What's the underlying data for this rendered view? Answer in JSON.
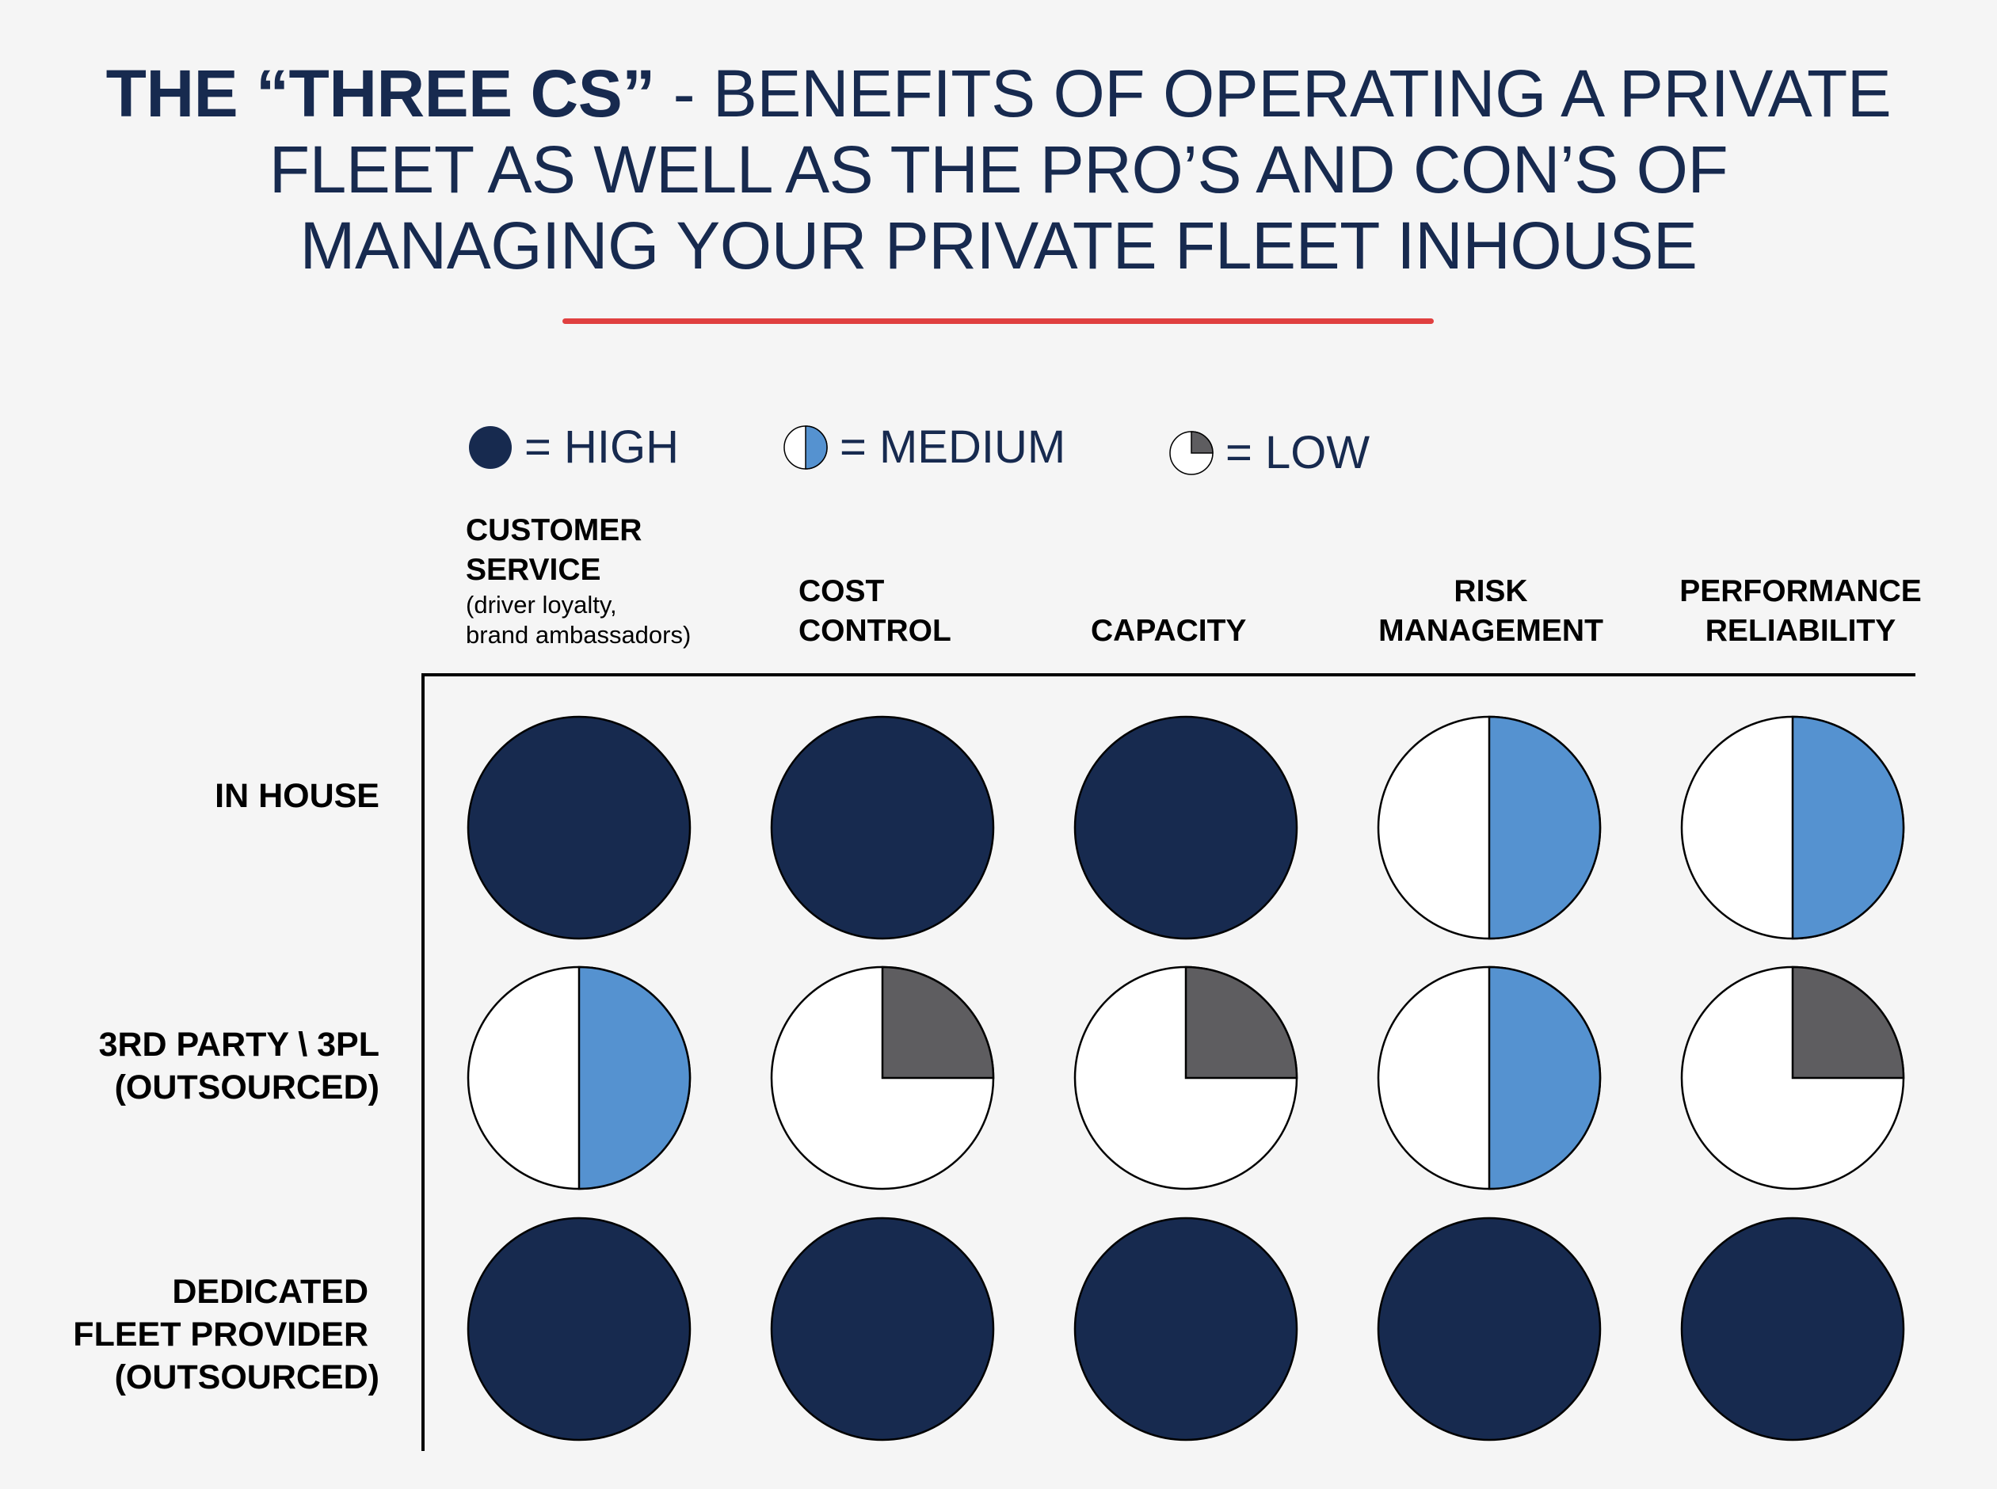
{
  "title": {
    "bold_part": "THE “THREE CS”",
    "line1_rest": " - BENEFITS OF OPERATING A PRIVATE",
    "line2": "FLEET AS WELL AS THE PRO’S AND CON’S OF",
    "line3": "MANAGING YOUR PRIVATE FLEET INHOUSE"
  },
  "legend": {
    "high_label": "= HIGH",
    "medium_label": "= MEDIUM",
    "low_label": "= LOW"
  },
  "columns": [
    {
      "line1": "CUSTOMER",
      "line2": "SERVICE",
      "sub1": "(driver loyalty,",
      "sub2": "brand ambassadors)"
    },
    {
      "line1": "COST",
      "line2": "CONTROL"
    },
    {
      "line1": "",
      "line2": "CAPACITY"
    },
    {
      "line1": "RISK",
      "line2": "MANAGEMENT"
    },
    {
      "line1": "PERFORMANCE",
      "line2": "RELIABILITY"
    }
  ],
  "rows": [
    {
      "line1": "IN HOUSE"
    },
    {
      "line1": "3RD PARTY \\ 3PL",
      "line2": "(OUTSOURCED)"
    },
    {
      "line1": "DEDICATED",
      "line2": "FLEET PROVIDER",
      "line3": "(OUTSOURCED)"
    }
  ],
  "colors": {
    "title": "#172a4f",
    "accent_rule": "#e04040",
    "high": "#172a4f",
    "medium": "#5592d0",
    "low": "#5e5d60",
    "empty": "#ffffff"
  },
  "chart_data": {
    "type": "table",
    "levels": {
      "high": 1.0,
      "medium": 0.5,
      "low": 0.25
    },
    "rows": [
      "IN HOUSE",
      "3RD PARTY \\ 3PL (OUTSOURCED)",
      "DEDICATED FLEET PROVIDER (OUTSOURCED)"
    ],
    "columns": [
      "CUSTOMER SERVICE",
      "COST CONTROL",
      "CAPACITY",
      "RISK MANAGEMENT",
      "PERFORMANCE RELIABILITY"
    ],
    "values": [
      [
        "high",
        "high",
        "high",
        "medium",
        "medium"
      ],
      [
        "medium",
        "low",
        "low",
        "medium",
        "low"
      ],
      [
        "high",
        "high",
        "high",
        "high",
        "high"
      ]
    ]
  }
}
